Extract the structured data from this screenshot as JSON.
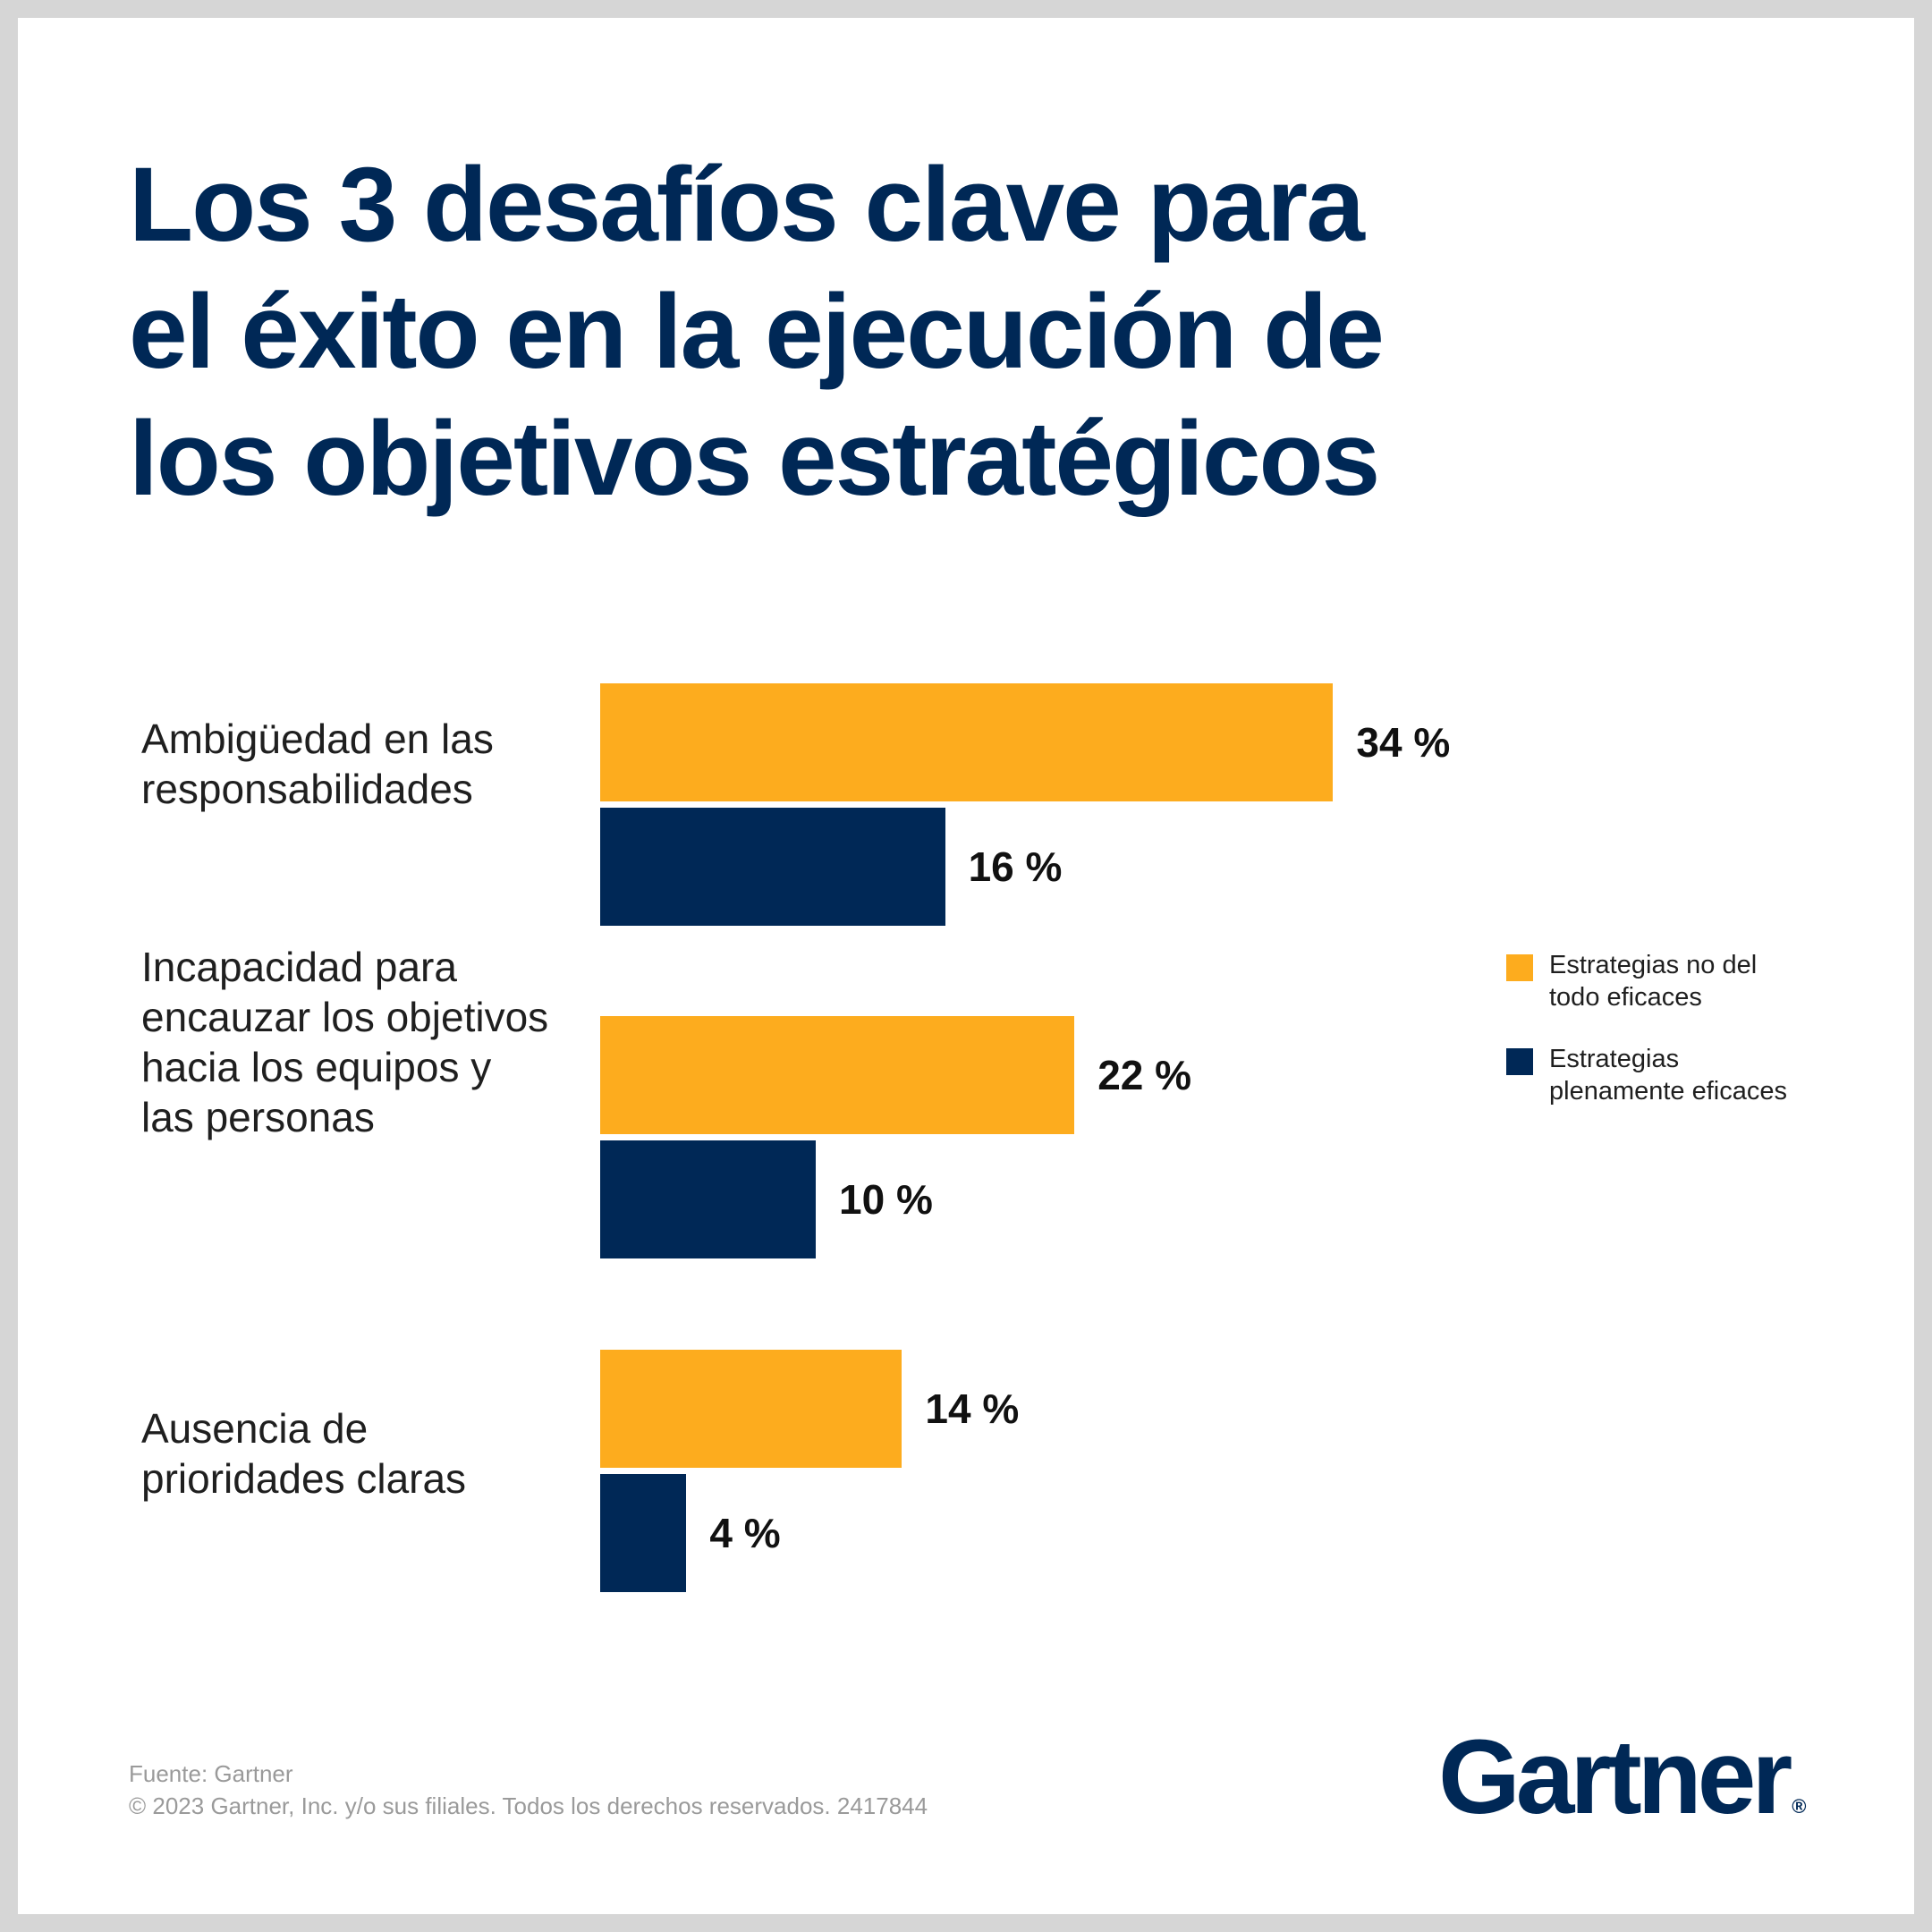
{
  "title_lines": [
    "Los 3 desafíos clave para",
    "el éxito en la ejecución de",
    "los objetivos estratégicos"
  ],
  "colors": {
    "series_1": "#FDAC1E",
    "series_2": "#002856",
    "title": "#002856"
  },
  "chart_data": {
    "type": "bar",
    "orientation": "horizontal",
    "value_unit": "%",
    "categories": [
      [
        "Ambigüedad en las",
        "responsabilidades"
      ],
      [
        "Incapacidad para",
        "encauzar los objetivos",
        "hacia los equipos y",
        "las personas"
      ],
      [
        "Ausencia de",
        "prioridades claras"
      ]
    ],
    "series": [
      {
        "name": [
          "Estrategias no del",
          "todo eficaces"
        ],
        "values": [
          34,
          22,
          14
        ],
        "labels": [
          "34 %",
          "22 %",
          "14 %"
        ]
      },
      {
        "name": [
          "Estrategias",
          "plenamente eficaces"
        ],
        "values": [
          16,
          10,
          4
        ],
        "labels": [
          "16 %",
          "10 %",
          "4 %"
        ]
      }
    ],
    "grid": false,
    "legend_position": "right"
  },
  "footer": {
    "source": "Fuente: Gartner",
    "copyright": "© 2023 Gartner, Inc. y/o sus filiales. Todos los derechos reservados. 2417844"
  },
  "logo": {
    "text": "Gartner",
    "mark": "®"
  }
}
